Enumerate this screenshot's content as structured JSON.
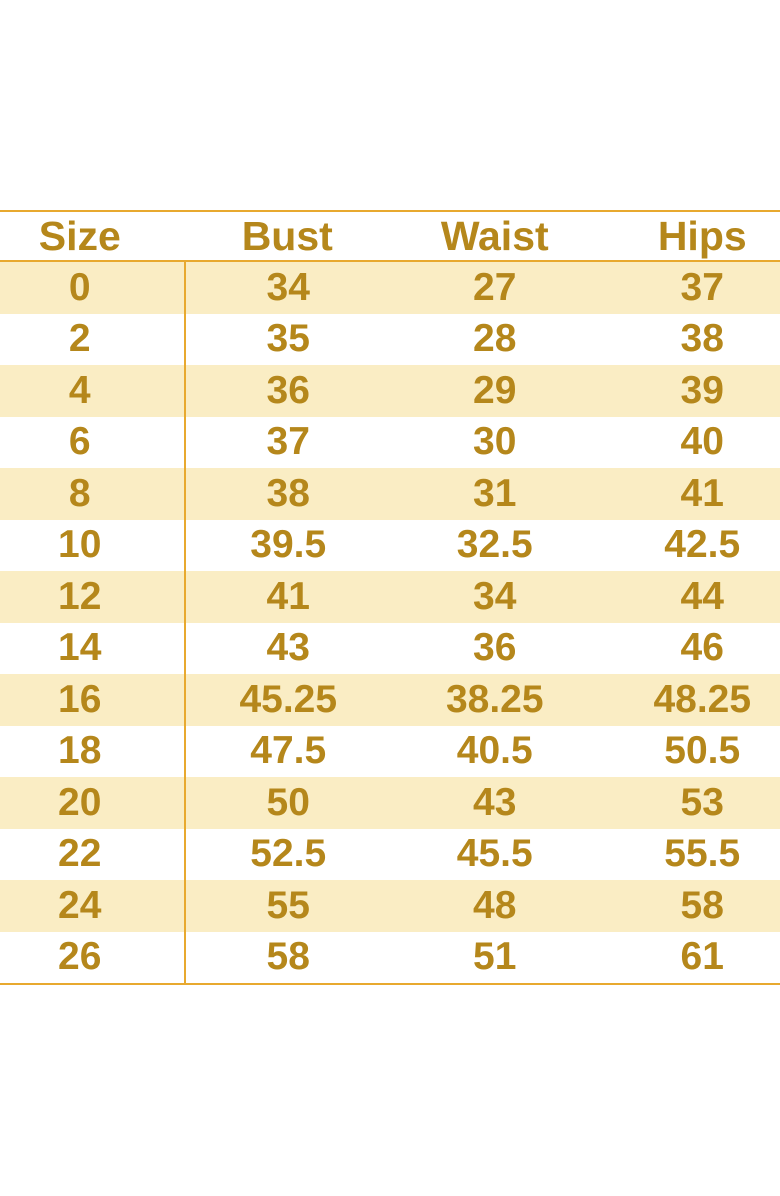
{
  "chart_data": {
    "type": "table",
    "columns": [
      "Size",
      "Bust",
      "Waist",
      "Hips"
    ],
    "rows": [
      [
        "0",
        "34",
        "27",
        "37"
      ],
      [
        "2",
        "35",
        "28",
        "38"
      ],
      [
        "4",
        "36",
        "29",
        "39"
      ],
      [
        "6",
        "37",
        "30",
        "40"
      ],
      [
        "8",
        "38",
        "31",
        "41"
      ],
      [
        "10",
        "39.5",
        "32.5",
        "42.5"
      ],
      [
        "12",
        "41",
        "34",
        "44"
      ],
      [
        "14",
        "43",
        "36",
        "46"
      ],
      [
        "16",
        "45.25",
        "38.25",
        "48.25"
      ],
      [
        "18",
        "47.5",
        "40.5",
        "50.5"
      ],
      [
        "20",
        "50",
        "43",
        "53"
      ],
      [
        "22",
        "52.5",
        "45.5",
        "55.5"
      ],
      [
        "24",
        "55",
        "48",
        "58"
      ],
      [
        "26",
        "58",
        "51",
        "61"
      ]
    ],
    "layout": {
      "striped_rows": "odd rows shaded starting with first data row",
      "vertical_divider_after_column": "Size",
      "grid": "horizontal rules above/below header and at table bottom only"
    }
  },
  "colors": {
    "text_gold": "#B5871B",
    "line_gold": "#E8A92F",
    "stripe": "#FAEDC4",
    "row_white": "#FFFFFF",
    "page_background": "#FFFFFF"
  }
}
